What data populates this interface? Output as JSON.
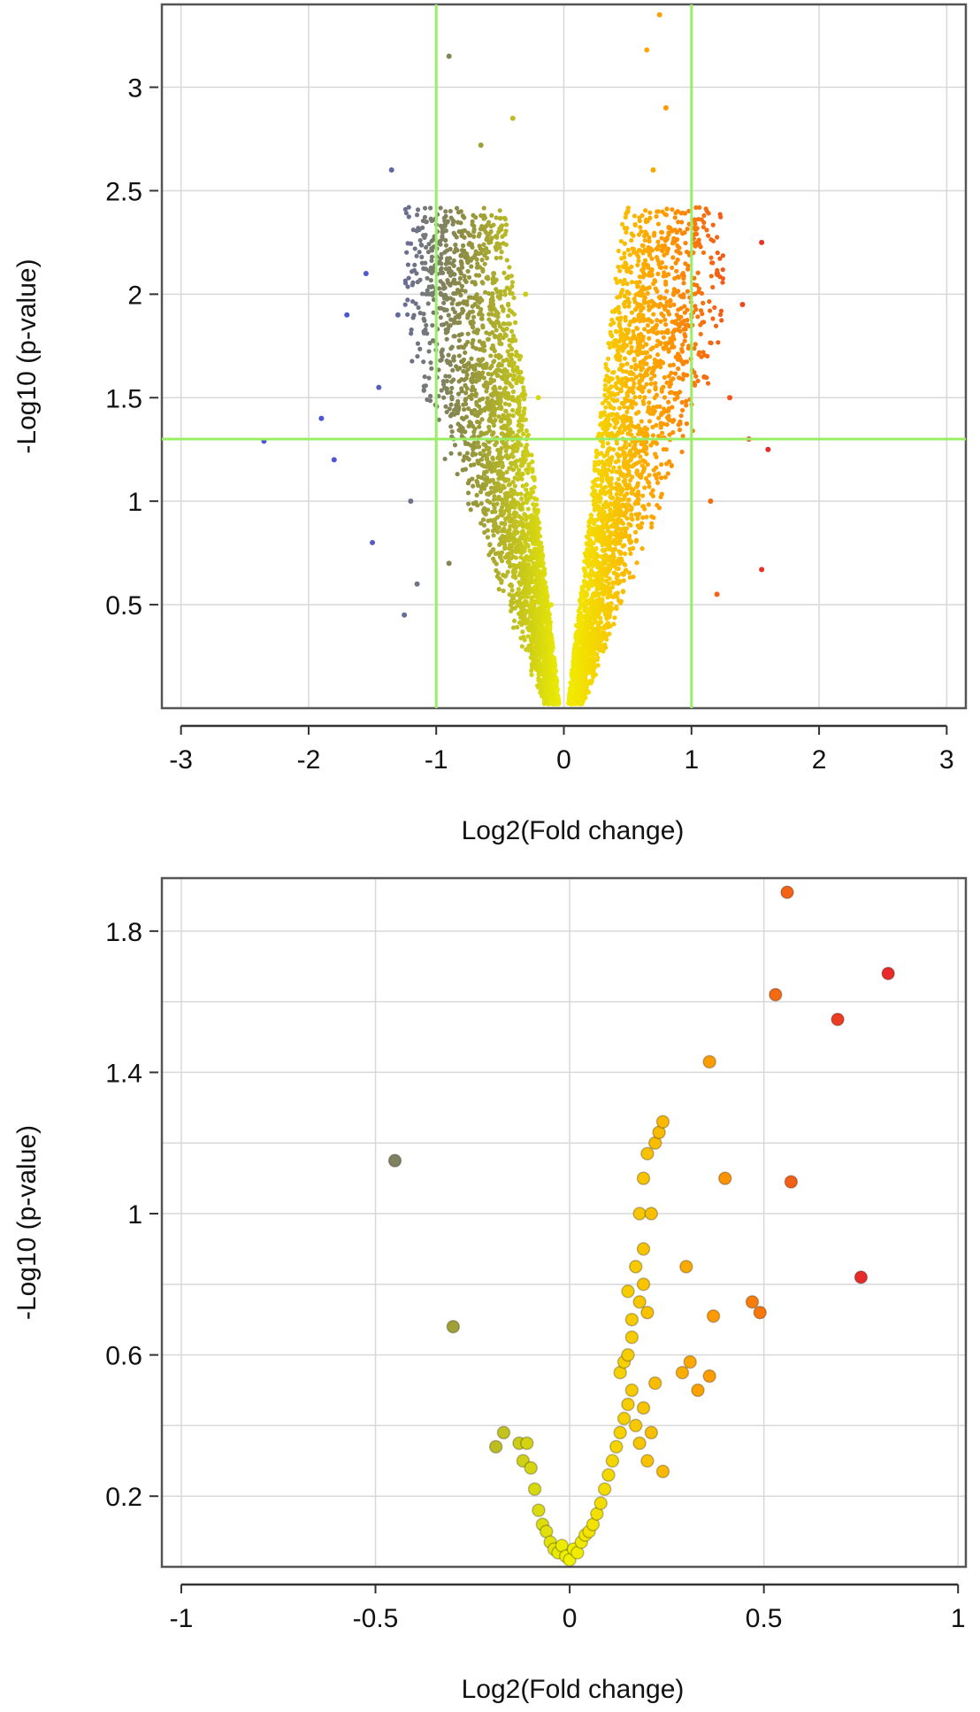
{
  "chart_data": [
    {
      "type": "scatter",
      "title": "",
      "xlabel": "Log2(Fold change)",
      "ylabel": "-Log10 (p-value)",
      "xlim": [
        -3.15,
        3.15
      ],
      "ylim": [
        0,
        3.4
      ],
      "xticks": [
        -3,
        -2,
        -1,
        0,
        1,
        2,
        3
      ],
      "yticks": [
        0.5,
        1,
        1.5,
        2,
        2.5,
        3
      ],
      "grid": true,
      "legend": "none",
      "threshold_lines": {
        "x": [
          -1,
          1
        ],
        "y": [
          1.3
        ],
        "color": "#99ee66"
      },
      "color_scale": {
        "negative": "#4b55d6",
        "neutral": "#ffff00",
        "positive": "#e82a2a"
      },
      "density_note_points": 6000,
      "points": [
        [
          -2.35,
          1.29
        ],
        [
          -1.9,
          1.4
        ],
        [
          -1.8,
          1.2
        ],
        [
          -1.7,
          1.9
        ],
        [
          -1.55,
          2.1
        ],
        [
          -1.5,
          0.8
        ],
        [
          -1.45,
          1.55
        ],
        [
          -1.35,
          2.6
        ],
        [
          -1.3,
          1.9
        ],
        [
          -1.25,
          0.45
        ],
        [
          -1.2,
          1.0
        ],
        [
          -1.15,
          0.6
        ],
        [
          -0.95,
          2.3
        ],
        [
          -0.9,
          0.7
        ],
        [
          -0.75,
          1.9
        ],
        [
          -0.65,
          2.72
        ],
        [
          -0.55,
          2.1
        ],
        [
          -0.4,
          2.85
        ],
        [
          -0.3,
          2.0
        ],
        [
          -0.2,
          1.5
        ],
        [
          -0.1,
          0.5
        ],
        [
          -0.9,
          3.15
        ],
        [
          0.65,
          3.18
        ],
        [
          0.75,
          3.35
        ],
        [
          0.8,
          2.9
        ],
        [
          0.7,
          2.6
        ],
        [
          0.5,
          2.4
        ],
        [
          0.45,
          1.8
        ],
        [
          0.3,
          1.3
        ],
        [
          0.2,
          0.9
        ],
        [
          0.1,
          0.4
        ],
        [
          1.05,
          2.25
        ],
        [
          1.1,
          1.6
        ],
        [
          1.15,
          1.0
        ],
        [
          1.2,
          2.1
        ],
        [
          1.3,
          1.5
        ],
        [
          1.4,
          1.95
        ],
        [
          1.45,
          1.3
        ],
        [
          1.55,
          2.25
        ],
        [
          1.6,
          1.25
        ],
        [
          1.55,
          0.67
        ],
        [
          1.2,
          0.55
        ]
      ]
    },
    {
      "type": "scatter",
      "title": "",
      "xlabel": "Log2(Fold change)",
      "ylabel": "-Log10 (p-value)",
      "xlim": [
        -1.05,
        1.02
      ],
      "ylim": [
        0,
        1.95
      ],
      "xticks": [
        -1,
        -0.5,
        0,
        0.5,
        1
      ],
      "yticks": [
        0.2,
        0.6,
        1,
        1.4,
        1.8
      ],
      "grid": true,
      "legend": "none",
      "points": [
        [
          -0.45,
          1.15
        ],
        [
          -0.3,
          0.68
        ],
        [
          -0.19,
          0.34
        ],
        [
          -0.17,
          0.38
        ],
        [
          -0.13,
          0.35
        ],
        [
          -0.12,
          0.3
        ],
        [
          -0.11,
          0.35
        ],
        [
          -0.1,
          0.28
        ],
        [
          -0.09,
          0.22
        ],
        [
          -0.08,
          0.16
        ],
        [
          -0.07,
          0.12
        ],
        [
          -0.06,
          0.1
        ],
        [
          -0.05,
          0.07
        ],
        [
          -0.04,
          0.05
        ],
        [
          -0.03,
          0.04
        ],
        [
          -0.02,
          0.06
        ],
        [
          -0.01,
          0.03
        ],
        [
          0.0,
          0.02
        ],
        [
          0.01,
          0.05
        ],
        [
          0.02,
          0.04
        ],
        [
          0.03,
          0.07
        ],
        [
          0.04,
          0.09
        ],
        [
          0.05,
          0.1
        ],
        [
          0.06,
          0.12
        ],
        [
          0.07,
          0.15
        ],
        [
          0.08,
          0.18
        ],
        [
          0.09,
          0.22
        ],
        [
          0.1,
          0.26
        ],
        [
          0.11,
          0.3
        ],
        [
          0.12,
          0.34
        ],
        [
          0.13,
          0.38
        ],
        [
          0.14,
          0.42
        ],
        [
          0.15,
          0.46
        ],
        [
          0.16,
          0.5
        ],
        [
          0.13,
          0.55
        ],
        [
          0.14,
          0.58
        ],
        [
          0.15,
          0.6
        ],
        [
          0.17,
          0.4
        ],
        [
          0.18,
          0.35
        ],
        [
          0.19,
          0.45
        ],
        [
          0.2,
          0.3
        ],
        [
          0.21,
          0.38
        ],
        [
          0.22,
          0.52
        ],
        [
          0.24,
          0.27
        ],
        [
          0.16,
          0.7
        ],
        [
          0.18,
          0.75
        ],
        [
          0.2,
          0.72
        ],
        [
          0.17,
          0.85
        ],
        [
          0.19,
          0.9
        ],
        [
          0.18,
          1.0
        ],
        [
          0.19,
          1.1
        ],
        [
          0.21,
          1.0
        ],
        [
          0.2,
          1.17
        ],
        [
          0.22,
          1.2
        ],
        [
          0.23,
          1.23
        ],
        [
          0.24,
          1.26
        ],
        [
          0.19,
          0.8
        ],
        [
          0.16,
          0.65
        ],
        [
          0.15,
          0.78
        ],
        [
          0.3,
          0.85
        ],
        [
          0.36,
          1.43
        ],
        [
          0.4,
          1.1
        ],
        [
          0.33,
          0.5
        ],
        [
          0.29,
          0.55
        ],
        [
          0.31,
          0.58
        ],
        [
          0.36,
          0.54
        ],
        [
          0.37,
          0.71
        ],
        [
          0.47,
          0.75
        ],
        [
          0.49,
          0.72
        ],
        [
          0.53,
          1.62
        ],
        [
          0.56,
          1.91
        ],
        [
          0.57,
          1.09
        ],
        [
          0.69,
          1.55
        ],
        [
          0.75,
          0.82
        ],
        [
          0.82,
          1.68
        ]
      ]
    }
  ]
}
